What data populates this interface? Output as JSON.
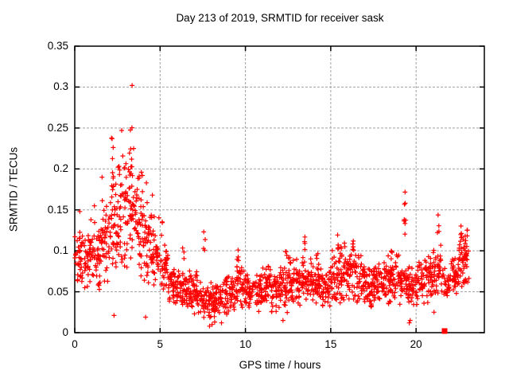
{
  "chart_data": {
    "type": "scatter",
    "title": "Day 213 of 2019, SRMTID for receiver sask",
    "xlabel": "GPS time / hours",
    "ylabel": "SRMTID / TECUs",
    "xlim": [
      0,
      24
    ],
    "ylim": [
      0,
      0.35
    ],
    "xtick_values": [
      0,
      5,
      10,
      15,
      20
    ],
    "xtick_labels": [
      "0",
      "5",
      "10",
      "15",
      "20"
    ],
    "ytick_values": [
      0,
      0.05,
      0.1,
      0.15,
      0.2,
      0.25,
      0.3,
      0.35
    ],
    "ytick_labels": [
      "0",
      "0.05",
      "0.1",
      "0.15",
      "0.2",
      "0.25",
      "0.3",
      "0.35"
    ],
    "grid": true,
    "legend": "none",
    "marker": {
      "shape": "plus",
      "color": "#ff0000",
      "size": 7
    },
    "grid_color": "#a0a0a0",
    "border_color": "#000000",
    "background_color": "#ffffff",
    "series_description": "~1950 red plus markers: elevated noisy band 0-5h peaking 0.30 at 3.4h, quiet band 0.02-0.09 from 6-21h with sporadic spike columns, isolated spike to 0.175 at 19.35h, near-zero cluster at 21.67h, rising tail to ~0.13 ending at 23.1h",
    "scatter_model": {
      "seed": 7,
      "segments": [
        [
          0.0,
          0.5,
          36,
          0.055,
          0.125
        ],
        [
          0.5,
          1.0,
          38,
          0.05,
          0.125
        ],
        [
          1.0,
          1.5,
          40,
          0.05,
          0.14
        ],
        [
          1.5,
          2.0,
          42,
          0.05,
          0.17
        ],
        [
          2.0,
          2.5,
          44,
          0.06,
          0.2
        ],
        [
          2.5,
          3.0,
          45,
          0.07,
          0.22
        ],
        [
          3.0,
          3.5,
          45,
          0.07,
          0.23
        ],
        [
          3.5,
          4.0,
          45,
          0.06,
          0.21
        ],
        [
          4.0,
          4.5,
          42,
          0.055,
          0.17
        ],
        [
          4.5,
          5.0,
          40,
          0.05,
          0.15
        ],
        [
          5.0,
          5.5,
          38,
          0.04,
          0.12
        ],
        [
          5.5,
          6.0,
          38,
          0.03,
          0.09
        ],
        [
          6.0,
          6.5,
          40,
          0.025,
          0.085
        ],
        [
          6.5,
          7.0,
          40,
          0.025,
          0.08
        ],
        [
          7.0,
          7.5,
          40,
          0.02,
          0.075
        ],
        [
          7.5,
          8.0,
          40,
          0.012,
          0.07
        ],
        [
          8.0,
          8.5,
          40,
          0.01,
          0.065
        ],
        [
          8.5,
          9.0,
          40,
          0.02,
          0.07
        ],
        [
          9.0,
          9.5,
          40,
          0.025,
          0.08
        ],
        [
          9.5,
          10.0,
          40,
          0.03,
          0.09
        ],
        [
          10.0,
          10.5,
          40,
          0.025,
          0.075
        ],
        [
          10.5,
          11.0,
          40,
          0.025,
          0.08
        ],
        [
          11.0,
          11.5,
          40,
          0.03,
          0.085
        ],
        [
          11.5,
          12.0,
          40,
          0.025,
          0.08
        ],
        [
          12.0,
          12.5,
          40,
          0.02,
          0.085
        ],
        [
          12.5,
          13.0,
          40,
          0.03,
          0.095
        ],
        [
          13.0,
          13.5,
          40,
          0.03,
          0.1
        ],
        [
          13.5,
          14.0,
          40,
          0.03,
          0.095
        ],
        [
          14.0,
          14.5,
          40,
          0.03,
          0.09
        ],
        [
          14.5,
          15.0,
          40,
          0.025,
          0.085
        ],
        [
          15.0,
          15.5,
          40,
          0.03,
          0.105
        ],
        [
          15.5,
          16.0,
          42,
          0.03,
          0.115
        ],
        [
          16.0,
          16.5,
          42,
          0.035,
          0.12
        ],
        [
          16.5,
          17.0,
          42,
          0.03,
          0.1
        ],
        [
          17.0,
          17.5,
          40,
          0.025,
          0.09
        ],
        [
          17.5,
          18.0,
          40,
          0.03,
          0.09
        ],
        [
          18.0,
          18.5,
          40,
          0.03,
          0.1
        ],
        [
          18.5,
          19.0,
          40,
          0.035,
          0.1
        ],
        [
          19.0,
          19.5,
          34,
          0.03,
          0.09
        ],
        [
          19.5,
          20.0,
          38,
          0.03,
          0.09
        ],
        [
          20.0,
          20.5,
          38,
          0.03,
          0.09
        ],
        [
          20.5,
          21.0,
          40,
          0.035,
          0.1
        ],
        [
          21.0,
          21.5,
          38,
          0.04,
          0.11
        ],
        [
          21.5,
          22.0,
          28,
          0.035,
          0.085
        ],
        [
          22.0,
          22.5,
          40,
          0.04,
          0.1
        ],
        [
          22.5,
          23.1,
          55,
          0.045,
          0.125
        ]
      ],
      "spike_columns": [
        [
          2.2,
          0.19,
          0.238,
          3
        ],
        [
          3.3,
          0.2,
          0.258,
          5
        ],
        [
          5.1,
          0.11,
          0.148,
          3
        ],
        [
          6.35,
          0.085,
          0.105,
          3
        ],
        [
          7.6,
          0.09,
          0.125,
          4
        ],
        [
          9.55,
          0.085,
          0.105,
          4
        ],
        [
          11.3,
          0.08,
          0.095,
          2
        ],
        [
          12.4,
          0.085,
          0.105,
          3
        ],
        [
          13.5,
          0.09,
          0.12,
          4
        ],
        [
          14.2,
          0.085,
          0.103,
          3
        ],
        [
          15.4,
          0.095,
          0.122,
          4
        ],
        [
          16.3,
          0.1,
          0.128,
          4
        ],
        [
          18.6,
          0.09,
          0.115,
          3
        ],
        [
          19.35,
          0.12,
          0.175,
          8
        ],
        [
          21.3,
          0.115,
          0.145,
          4
        ],
        [
          22.65,
          0.105,
          0.138,
          5
        ],
        [
          22.95,
          0.1,
          0.128,
          4
        ]
      ],
      "outliers_high": [
        [
          3.36,
          0.302
        ],
        [
          2.19,
          0.237
        ],
        [
          2.75,
          0.247
        ],
        [
          3.45,
          0.225
        ],
        [
          1.6,
          0.19
        ],
        [
          0.3,
          0.148
        ],
        [
          1.15,
          0.155
        ],
        [
          3.9,
          0.196
        ],
        [
          4.2,
          0.183
        ],
        [
          4.55,
          0.168
        ],
        [
          0.95,
          0.138
        ]
      ],
      "outliers_low": [
        [
          2.3,
          0.021
        ],
        [
          4.15,
          0.019
        ],
        [
          7.9,
          0.008
        ],
        [
          8.05,
          0.01
        ],
        [
          8.2,
          0.013
        ],
        [
          8.6,
          0.012
        ],
        [
          12.2,
          0.015
        ],
        [
          19.6,
          0.012
        ],
        [
          19.65,
          0.015
        ],
        [
          21.05,
          0.025
        ]
      ],
      "zero_cluster": {
        "x": 21.67,
        "y": 0.002,
        "marker": "filled-square",
        "size": 7
      }
    }
  }
}
